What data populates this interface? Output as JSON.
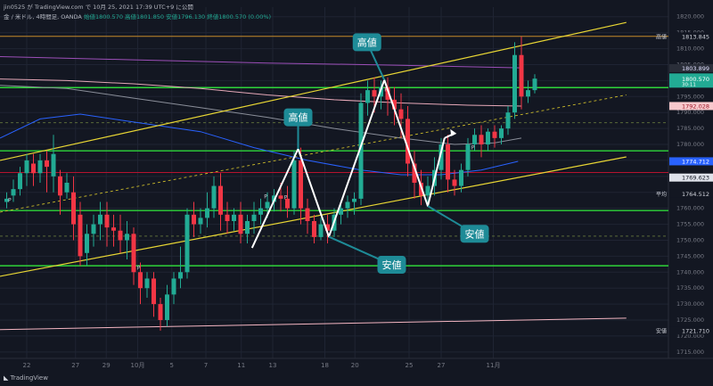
{
  "header": {
    "author_line": "jin0525 が TradingView.com で 10月 25, 2021 17:39 UTC+9 に公開",
    "symbol": "金 / 米ドル, 4時間足, OANDA",
    "ohlc": [
      {
        "label": "始値",
        "value": "1800.570"
      },
      {
        "label": "高値",
        "value": "1801.850"
      },
      {
        "label": "安値",
        "value": "1796.130"
      },
      {
        "label": "終値",
        "value": "1800.570 (0.00%)"
      }
    ]
  },
  "footer": {
    "logo_text": "TradingView"
  },
  "chart_data": {
    "type": "candlestick",
    "symbol": "金 / 米ドル",
    "timeframe": "4時間足",
    "y_range": [
      1713,
      1823
    ],
    "y_ticks": [
      1715,
      1720,
      1725,
      1730,
      1735,
      1740,
      1745,
      1750,
      1755,
      1760,
      1765,
      1770,
      1775,
      1780,
      1785,
      1790,
      1795,
      1800,
      1805,
      1810,
      1815,
      1820
    ],
    "y_tick_labels": [
      "1715.000",
      "1720.000",
      "1725.000",
      "1730.000",
      "1735.000",
      "1740.000",
      "1745.000",
      "1750.000",
      "1755.000",
      "1760.000",
      "1765.000",
      "1770.000",
      "1775.000",
      "1780.000",
      "1785.000",
      "1790.000",
      "1795.000",
      "1800.000",
      "1805.000",
      "1810.000",
      "1815.000",
      "1820.000"
    ],
    "x_labels": [
      {
        "label": "22",
        "pos": 0.04
      },
      {
        "label": "27",
        "pos": 0.113
      },
      {
        "label": "29",
        "pos": 0.159
      },
      {
        "label": "10月",
        "pos": 0.206
      },
      {
        "label": "5",
        "pos": 0.257
      },
      {
        "label": "7",
        "pos": 0.308
      },
      {
        "label": "11",
        "pos": 0.361
      },
      {
        "label": "13",
        "pos": 0.408
      },
      {
        "label": "18",
        "pos": 0.486
      },
      {
        "label": "20",
        "pos": 0.531
      },
      {
        "label": "25",
        "pos": 0.612
      },
      {
        "label": "27",
        "pos": 0.66
      },
      {
        "label": "11月",
        "pos": 0.738
      }
    ],
    "price_badges": [
      {
        "label": "高値",
        "value": "1813.845",
        "price": 1813.845,
        "color": "#131722",
        "text_color": "#d1d4dc"
      },
      {
        "label": "",
        "value": "1803.899",
        "price": 1803.899,
        "color": "#2a2e39",
        "text_color": "#e0e0ff"
      },
      {
        "label": "",
        "value": "1800.570",
        "sub": "30:11",
        "price": 1800.57,
        "color": "#22ab94",
        "text_color": "#ffffff"
      },
      {
        "label": "",
        "value": "1792.028",
        "price": 1792.028,
        "color": "#f8c9cd",
        "text_color": "#a01828"
      },
      {
        "label": "",
        "value": "1774.712",
        "price": 1774.712,
        "color": "#2962ff",
        "text_color": "#ffffff"
      },
      {
        "label": "",
        "value": "1769.623",
        "price": 1769.623,
        "color": "#e0e3eb",
        "text_color": "#131722"
      },
      {
        "label": "平均",
        "value": "1764.512",
        "price": 1764.512,
        "color": "#131722",
        "text_color": "#d1d4dc"
      },
      {
        "label": "安値",
        "value": "1721.710",
        "price": 1721.71,
        "color": "#131722",
        "text_color": "#d1d4dc"
      }
    ],
    "horizontal_lines": [
      {
        "price": 1813.845,
        "color": "#c68a2a",
        "style": "solid",
        "width": 1
      },
      {
        "price": 1797.8,
        "color": "#2ed43a",
        "style": "solid",
        "width": 1.4
      },
      {
        "price": 1778.0,
        "color": "#2ed43a",
        "style": "solid",
        "width": 1.4
      },
      {
        "price": 1759.3,
        "color": "#2ed43a",
        "style": "solid",
        "width": 1.4
      },
      {
        "price": 1742.0,
        "color": "#2ed43a",
        "style": "solid",
        "width": 1.4
      },
      {
        "price": 1771.2,
        "color": "#b5122e",
        "style": "solid",
        "width": 1
      },
      {
        "price": 1751.3,
        "color": "#5a6a3a",
        "style": "dashed",
        "width": 1
      },
      {
        "price": 1786.8,
        "color": "#5a6a3a",
        "style": "dashed",
        "width": 1
      }
    ],
    "trendlines": [
      {
        "p1": [
          0.0,
          1775.0
        ],
        "p2": [
          0.937,
          1818.2
        ],
        "color": "#e8d634",
        "width": 1.2,
        "dash": false
      },
      {
        "p1": [
          0.0,
          1738.7
        ],
        "p2": [
          0.937,
          1776.1
        ],
        "color": "#e8d634",
        "width": 1.2,
        "dash": false
      },
      {
        "p1": [
          0.0,
          1758.8
        ],
        "p2": [
          0.937,
          1795.5
        ],
        "color": "#c9b92a",
        "width": 0.9,
        "dash": true
      },
      {
        "p1": [
          0.0,
          1722.0
        ],
        "p2": [
          0.937,
          1725.6
        ],
        "color": "#f4b6c2",
        "width": 1,
        "dash": false
      }
    ],
    "zigzag": [
      [
        0.377,
        1747.6
      ],
      [
        0.446,
        1778.6
      ],
      [
        0.492,
        1751.1
      ],
      [
        0.575,
        1800.2
      ],
      [
        0.64,
        1760.7
      ],
      [
        0.665,
        1782.0
      ]
    ],
    "zigzag_arrow": [
      [
        0.665,
        1782.0
      ],
      [
        0.679,
        1783.4
      ]
    ],
    "ma_lines": [
      {
        "name": "ma-blue",
        "color": "#2962ff",
        "points": [
          [
            0.0,
            1782.0
          ],
          [
            0.06,
            1788.0
          ],
          [
            0.12,
            1789.5
          ],
          [
            0.2,
            1787.0
          ],
          [
            0.3,
            1784.0
          ],
          [
            0.38,
            1779.0
          ],
          [
            0.46,
            1775.0
          ],
          [
            0.54,
            1772.0
          ],
          [
            0.6,
            1770.5
          ],
          [
            0.66,
            1770.5
          ],
          [
            0.72,
            1772.0
          ],
          [
            0.775,
            1774.7
          ]
        ]
      },
      {
        "name": "ma-gray",
        "color": "#8a8e99",
        "points": [
          [
            0.0,
            1798.5
          ],
          [
            0.1,
            1797.5
          ],
          [
            0.2,
            1794.5
          ],
          [
            0.3,
            1791.5
          ],
          [
            0.4,
            1788.5
          ],
          [
            0.5,
            1785.0
          ],
          [
            0.6,
            1782.0
          ],
          [
            0.68,
            1780.0
          ],
          [
            0.74,
            1780.5
          ],
          [
            0.78,
            1782.0
          ]
        ]
      },
      {
        "name": "ma-pink",
        "color": "#e6a8b8",
        "points": [
          [
            0.0,
            1800.5
          ],
          [
            0.1,
            1800.0
          ],
          [
            0.2,
            1799.0
          ],
          [
            0.3,
            1797.5
          ],
          [
            0.4,
            1795.5
          ],
          [
            0.5,
            1794.0
          ],
          [
            0.6,
            1793.0
          ],
          [
            0.7,
            1792.3
          ],
          [
            0.78,
            1792.0
          ]
        ]
      },
      {
        "name": "ma-purple",
        "color": "#9c4fb8",
        "points": [
          [
            0.0,
            1807.5
          ],
          [
            0.2,
            1806.5
          ],
          [
            0.4,
            1805.5
          ],
          [
            0.6,
            1804.8
          ],
          [
            0.78,
            1804.0
          ]
        ]
      }
    ],
    "candles": [
      {
        "t": 0.01,
        "o": 1762,
        "h": 1765,
        "c": 1763,
        "l": 1760
      },
      {
        "t": 0.02,
        "o": 1764,
        "h": 1769,
        "c": 1766,
        "l": 1762
      },
      {
        "t": 0.03,
        "o": 1766,
        "h": 1773,
        "c": 1771,
        "l": 1764
      },
      {
        "t": 0.04,
        "o": 1771,
        "h": 1777,
        "c": 1775,
        "l": 1767
      },
      {
        "t": 0.05,
        "o": 1774,
        "h": 1777,
        "c": 1771,
        "l": 1767
      },
      {
        "t": 0.06,
        "o": 1771,
        "h": 1777,
        "c": 1775,
        "l": 1768
      },
      {
        "t": 0.07,
        "o": 1775,
        "h": 1778,
        "c": 1773,
        "l": 1765
      },
      {
        "t": 0.08,
        "o": 1770,
        "h": 1783,
        "c": 1777,
        "l": 1765
      },
      {
        "t": 0.09,
        "o": 1770,
        "h": 1772,
        "c": 1764,
        "l": 1758
      },
      {
        "t": 0.1,
        "o": 1765,
        "h": 1771,
        "c": 1768,
        "l": 1763
      },
      {
        "t": 0.11,
        "o": 1765,
        "h": 1770,
        "c": 1755,
        "l": 1750
      },
      {
        "t": 0.12,
        "o": 1758,
        "h": 1762,
        "c": 1745,
        "l": 1742
      },
      {
        "t": 0.13,
        "o": 1746,
        "h": 1755,
        "c": 1752,
        "l": 1742
      },
      {
        "t": 0.14,
        "o": 1752,
        "h": 1758,
        "c": 1755,
        "l": 1748
      },
      {
        "t": 0.15,
        "o": 1755,
        "h": 1762,
        "c": 1758,
        "l": 1750
      },
      {
        "t": 0.16,
        "o": 1758,
        "h": 1762,
        "c": 1754,
        "l": 1748
      },
      {
        "t": 0.17,
        "o": 1754,
        "h": 1758,
        "c": 1753,
        "l": 1748
      },
      {
        "t": 0.18,
        "o": 1753,
        "h": 1758,
        "c": 1750,
        "l": 1746
      },
      {
        "t": 0.19,
        "o": 1750,
        "h": 1756,
        "c": 1752,
        "l": 1744
      },
      {
        "t": 0.2,
        "o": 1752,
        "h": 1754,
        "c": 1740,
        "l": 1736
      },
      {
        "t": 0.21,
        "o": 1740,
        "h": 1743,
        "c": 1735,
        "l": 1730
      },
      {
        "t": 0.22,
        "o": 1735,
        "h": 1740,
        "c": 1738,
        "l": 1732
      },
      {
        "t": 0.23,
        "o": 1738,
        "h": 1740,
        "c": 1730,
        "l": 1726
      },
      {
        "t": 0.24,
        "o": 1730,
        "h": 1732,
        "c": 1725,
        "l": 1721.7
      },
      {
        "t": 0.25,
        "o": 1725,
        "h": 1736,
        "c": 1733,
        "l": 1723
      },
      {
        "t": 0.26,
        "o": 1733,
        "h": 1740,
        "c": 1738,
        "l": 1730
      },
      {
        "t": 0.27,
        "o": 1738,
        "h": 1748,
        "c": 1740,
        "l": 1735
      },
      {
        "t": 0.28,
        "o": 1740,
        "h": 1760,
        "c": 1758,
        "l": 1738
      },
      {
        "t": 0.29,
        "o": 1758,
        "h": 1762,
        "c": 1755,
        "l": 1751
      },
      {
        "t": 0.3,
        "o": 1755,
        "h": 1760,
        "c": 1757,
        "l": 1752
      },
      {
        "t": 0.31,
        "o": 1757,
        "h": 1765,
        "c": 1760,
        "l": 1754
      },
      {
        "t": 0.32,
        "o": 1760,
        "h": 1770,
        "c": 1767,
        "l": 1757
      },
      {
        "t": 0.33,
        "o": 1767,
        "h": 1771,
        "c": 1758,
        "l": 1753
      },
      {
        "t": 0.34,
        "o": 1758,
        "h": 1762,
        "c": 1756,
        "l": 1752
      },
      {
        "t": 0.35,
        "o": 1756,
        "h": 1760,
        "c": 1758,
        "l": 1753
      },
      {
        "t": 0.36,
        "o": 1758,
        "h": 1762,
        "c": 1752,
        "l": 1749
      },
      {
        "t": 0.37,
        "o": 1752,
        "h": 1758,
        "c": 1756,
        "l": 1749
      },
      {
        "t": 0.38,
        "o": 1756,
        "h": 1762,
        "c": 1758,
        "l": 1752
      },
      {
        "t": 0.39,
        "o": 1758,
        "h": 1763,
        "c": 1760,
        "l": 1755
      },
      {
        "t": 0.4,
        "o": 1760,
        "h": 1765,
        "c": 1762,
        "l": 1757
      },
      {
        "t": 0.41,
        "o": 1762,
        "h": 1766,
        "c": 1764,
        "l": 1759
      },
      {
        "t": 0.42,
        "o": 1764,
        "h": 1768,
        "c": 1763,
        "l": 1759
      },
      {
        "t": 0.43,
        "o": 1763,
        "h": 1767,
        "c": 1760,
        "l": 1757
      },
      {
        "t": 0.44,
        "o": 1760,
        "h": 1778,
        "c": 1775,
        "l": 1758
      },
      {
        "t": 0.45,
        "o": 1775,
        "h": 1779,
        "c": 1760,
        "l": 1755
      },
      {
        "t": 0.46,
        "o": 1760,
        "h": 1763,
        "c": 1756,
        "l": 1752
      },
      {
        "t": 0.47,
        "o": 1756,
        "h": 1758,
        "c": 1751,
        "l": 1749
      },
      {
        "t": 0.48,
        "o": 1751,
        "h": 1757,
        "c": 1755,
        "l": 1750
      },
      {
        "t": 0.49,
        "o": 1755,
        "h": 1758,
        "c": 1753,
        "l": 1749
      },
      {
        "t": 0.5,
        "o": 1753,
        "h": 1760,
        "c": 1758,
        "l": 1751
      },
      {
        "t": 0.51,
        "o": 1758,
        "h": 1762,
        "c": 1760,
        "l": 1755
      },
      {
        "t": 0.52,
        "o": 1760,
        "h": 1764,
        "c": 1762,
        "l": 1757
      },
      {
        "t": 0.53,
        "o": 1762,
        "h": 1765,
        "c": 1763,
        "l": 1758
      },
      {
        "t": 0.54,
        "o": 1763,
        "h": 1796,
        "c": 1793,
        "l": 1761
      },
      {
        "t": 0.55,
        "o": 1793,
        "h": 1800,
        "c": 1797,
        "l": 1789
      },
      {
        "t": 0.56,
        "o": 1797,
        "h": 1801,
        "c": 1795,
        "l": 1790
      },
      {
        "t": 0.57,
        "o": 1795,
        "h": 1800,
        "c": 1798,
        "l": 1791
      },
      {
        "t": 0.58,
        "o": 1798,
        "h": 1801,
        "c": 1794,
        "l": 1789
      },
      {
        "t": 0.59,
        "o": 1794,
        "h": 1798,
        "c": 1791,
        "l": 1786
      },
      {
        "t": 0.6,
        "o": 1791,
        "h": 1796,
        "c": 1788,
        "l": 1782
      },
      {
        "t": 0.61,
        "o": 1788,
        "h": 1792,
        "c": 1774,
        "l": 1770
      },
      {
        "t": 0.62,
        "o": 1774,
        "h": 1778,
        "c": 1768,
        "l": 1763
      },
      {
        "t": 0.63,
        "o": 1768,
        "h": 1772,
        "c": 1764,
        "l": 1761
      },
      {
        "t": 0.64,
        "o": 1764,
        "h": 1770,
        "c": 1767,
        "l": 1760.7
      },
      {
        "t": 0.65,
        "o": 1767,
        "h": 1776,
        "c": 1772,
        "l": 1764
      },
      {
        "t": 0.66,
        "o": 1772,
        "h": 1782,
        "c": 1780,
        "l": 1769
      },
      {
        "t": 0.67,
        "o": 1780,
        "h": 1783,
        "c": 1769,
        "l": 1765
      },
      {
        "t": 0.68,
        "o": 1769,
        "h": 1772,
        "c": 1767,
        "l": 1764
      },
      {
        "t": 0.69,
        "o": 1767,
        "h": 1774,
        "c": 1772,
        "l": 1765
      },
      {
        "t": 0.7,
        "o": 1772,
        "h": 1782,
        "c": 1780,
        "l": 1770
      },
      {
        "t": 0.71,
        "o": 1780,
        "h": 1785,
        "c": 1783,
        "l": 1778
      },
      {
        "t": 0.72,
        "o": 1783,
        "h": 1786,
        "c": 1780,
        "l": 1776
      },
      {
        "t": 0.73,
        "o": 1780,
        "h": 1785,
        "c": 1784,
        "l": 1778
      },
      {
        "t": 0.74,
        "o": 1784,
        "h": 1786,
        "c": 1782,
        "l": 1779
      },
      {
        "t": 0.75,
        "o": 1782,
        "h": 1786,
        "c": 1785,
        "l": 1780
      },
      {
        "t": 0.76,
        "o": 1785,
        "h": 1792,
        "c": 1790,
        "l": 1783
      },
      {
        "t": 0.77,
        "o": 1790,
        "h": 1812,
        "c": 1808,
        "l": 1788
      },
      {
        "t": 0.78,
        "o": 1808,
        "h": 1813.8,
        "c": 1795,
        "l": 1791
      },
      {
        "t": 0.79,
        "o": 1795,
        "h": 1800,
        "c": 1797,
        "l": 1793
      },
      {
        "t": 0.8,
        "o": 1797,
        "h": 1802,
        "c": 1800.6,
        "l": 1796
      }
    ],
    "annotations": [
      {
        "text": "高値",
        "anchor": [
          0.549,
          1812.0
        ],
        "point": [
          0.575,
          1800.2
        ]
      },
      {
        "text": "高値",
        "anchor": [
          0.446,
          1788.5
        ],
        "point": [
          0.446,
          1778.6
        ]
      },
      {
        "text": "安値",
        "anchor": [
          0.586,
          1742.3
        ],
        "point": [
          0.492,
          1751.1
        ]
      },
      {
        "text": "安値",
        "anchor": [
          0.71,
          1752.0
        ],
        "point": [
          0.64,
          1760.7
        ]
      }
    ],
    "p_markers": [
      {
        "t": 0.012,
        "price": 1762.0
      },
      {
        "t": 0.205,
        "price": 1740.8
      },
      {
        "t": 0.395,
        "price": 1763.1
      },
      {
        "t": 0.425,
        "price": 1762.8
      },
      {
        "t": 0.575,
        "price": 1796.6
      },
      {
        "t": 0.705,
        "price": 1778.5
      }
    ]
  }
}
